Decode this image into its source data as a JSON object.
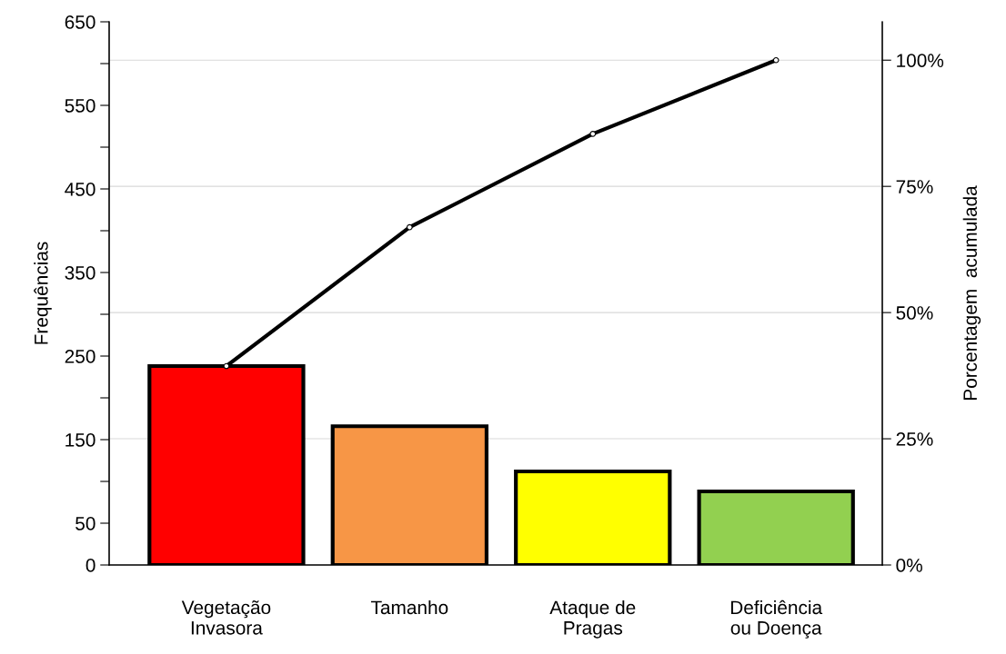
{
  "chart_data": {
    "type": "bar",
    "xlabel": null,
    "ylabel": "Frequências",
    "y2label": "Porcentagem  acumulada",
    "categories": [
      "Vegetação\nInvasora",
      "Tamanho",
      "Ataque de\nPragas",
      "Deficiência\nou Doença"
    ],
    "series": [
      {
        "colors": [
          "#ff0000",
          "#f79646",
          "#ffff00",
          "#92d050"
        ],
        "values": [
          238,
          166,
          112,
          88
        ]
      },
      {
        "type": "line",
        "axis": "y2",
        "color": "#000000",
        "values": [
          39.4,
          66.9,
          85.4,
          100
        ],
        "marker": "circle",
        "line_style": "solid"
      }
    ],
    "ylim": [
      0,
      650
    ],
    "yticks": [
      0,
      50,
      {
        "value": 100,
        "label": null
      },
      150,
      {
        "value": 200,
        "label": null
      },
      250,
      {
        "value": 300,
        "label": null
      },
      350,
      {
        "value": 400,
        "label": null
      },
      450,
      {
        "value": 500,
        "label": null
      },
      550,
      {
        "value": 600,
        "label": null
      },
      650
    ],
    "y2lim": [
      0,
      107.6
    ],
    "y2ticks": [
      {
        "value": 0,
        "label": "0%"
      },
      {
        "value": 25,
        "label": "25%"
      },
      {
        "value": 50,
        "label": "50%"
      },
      {
        "value": 75,
        "label": "75%"
      },
      {
        "value": 100,
        "label": "100%"
      }
    ],
    "grid": "y2",
    "legend": false
  }
}
